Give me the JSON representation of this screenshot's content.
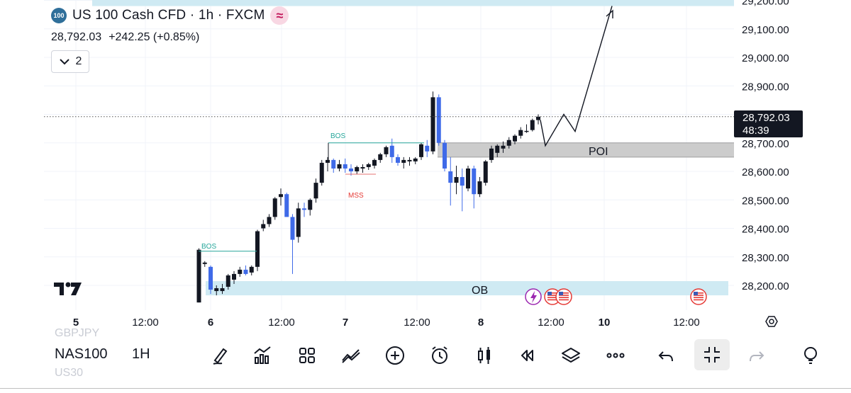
{
  "header": {
    "symbol_badge": "100",
    "title": "US 100 Cash CFD · 1h · FXCM",
    "wave_glyph": "≈",
    "price": "28,792.03",
    "change": "+242.25 (+0.85%)",
    "collapse_count": "2"
  },
  "price_tag": {
    "price": "28,792.03",
    "countdown": "48:39"
  },
  "chart_data": {
    "type": "candlestick",
    "price_axis": [
      "29,200.00",
      "29,100.00",
      "29,000.00",
      "28,900.00",
      "28,800.00",
      "28,700.00",
      "28,600.00",
      "28,500.00",
      "28,400.00",
      "28,300.00",
      "28,200.00"
    ],
    "price_axis_values": [
      29200,
      29100,
      29000,
      28900,
      28800,
      28700,
      28600,
      28500,
      28400,
      28300,
      28200
    ],
    "time_axis": [
      "5",
      "12:00",
      "6",
      "12:00",
      "7",
      "12:00",
      "8",
      "12:00",
      "10",
      "12:00"
    ],
    "last_price": 28792.03,
    "zones": [
      {
        "label": "",
        "low": 29180,
        "high": 29205,
        "color": "#cfeaf3"
      },
      {
        "label": "POI",
        "low": 28650,
        "high": 28700,
        "color": "#cccccc"
      },
      {
        "label": "OB",
        "low": 28165,
        "high": 28215,
        "color": "#cfeaf3"
      }
    ],
    "annotations": [
      {
        "text": "BOS",
        "price": 28320
      },
      {
        "text": "BOS",
        "price": 28700
      },
      {
        "text": "MSS",
        "price": 28575
      },
      {
        "text": "POI"
      },
      {
        "text": "OB"
      }
    ],
    "projection": [
      28780,
      28690,
      28800,
      28740,
      29180
    ]
  },
  "toolbar": {
    "symbol": "NAS100",
    "interval": "1H",
    "ghost_above": "GBPJPY",
    "ghost_below": "US30",
    "tools": [
      "brush-icon",
      "indicators-icon",
      "templates-icon",
      "compare-icon",
      "add-icon",
      "alert-icon",
      "bar-style-icon",
      "replay-icon",
      "layers-icon",
      "more-icon",
      "undo-icon",
      "fullscreen-exit-icon",
      "redo-icon",
      "bulb-icon"
    ]
  }
}
